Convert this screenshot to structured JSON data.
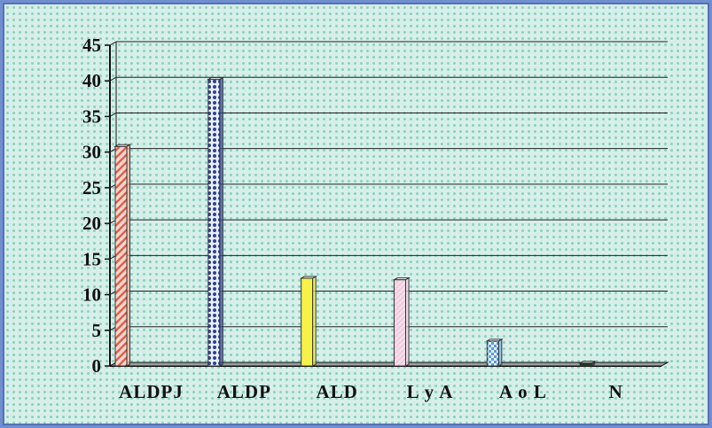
{
  "chart_data": {
    "type": "bar",
    "categories": [
      "ALDPJ",
      "ALDP",
      "ALD",
      "L y A",
      "A o L",
      "N"
    ],
    "values": [
      30.8,
      40.2,
      12.3,
      12.1,
      3.5,
      0.4
    ],
    "ylim": [
      0,
      45
    ],
    "yticks": [
      "0",
      "5",
      "10",
      "15",
      "20",
      "25",
      "30",
      "35",
      "40",
      "45"
    ],
    "grid": true,
    "style": "3d-column",
    "colors": {
      "ALDPJ": "#f0b0a0",
      "ALDP": "#3b4fa0",
      "ALD": "#f5f040",
      "L y A": "#f4d4e4",
      "A o L": "#7fb8e8",
      "N": "#1f3a20"
    }
  }
}
